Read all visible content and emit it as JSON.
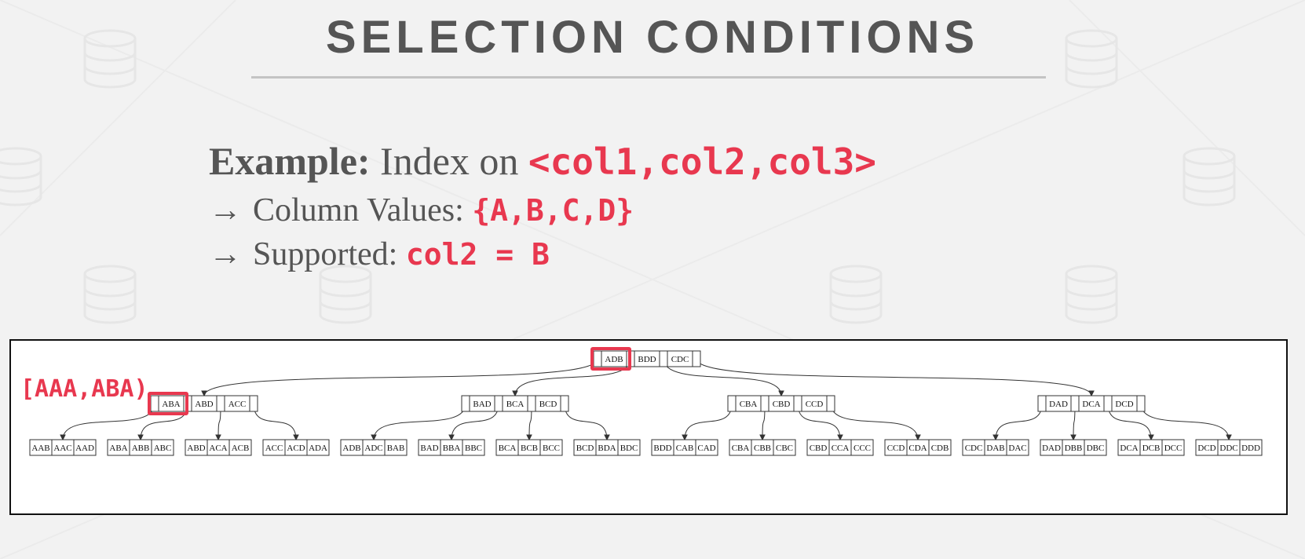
{
  "slide": {
    "title": "SELECTION CONDITIONS",
    "example_label": "Example:",
    "example_text": "Index on",
    "example_code": "<col1,col2,col3>",
    "line2_arrow": "→",
    "line2_text": "Column Values:",
    "line2_code": "{A,B,C,D}",
    "line3_arrow": "→",
    "line3_text": "Supported:",
    "line3_code": "col2 = B"
  },
  "diagram": {
    "range_label": "[AAA,ABA)",
    "root_keys": [
      "ADB",
      "BDD",
      "CDC"
    ],
    "inner_nodes": [
      [
        "ABA",
        "ABD",
        "ACC"
      ],
      [
        "BAD",
        "BCA",
        "BCD"
      ],
      [
        "CBA",
        "CBD",
        "CCD"
      ],
      [
        "DAD",
        "DCA",
        "DCD"
      ]
    ],
    "leaves": [
      [
        "AAB",
        "AAC",
        "AAD"
      ],
      [
        "ABA",
        "ABB",
        "ABC"
      ],
      [
        "ABD",
        "ACA",
        "ACB"
      ],
      [
        "ACC",
        "ACD",
        "ADA"
      ],
      [
        "ADB",
        "ADC",
        "BAB"
      ],
      [
        "BAD",
        "BBA",
        "BBC"
      ],
      [
        "BCA",
        "BCB",
        "BCC"
      ],
      [
        "BCD",
        "BDA",
        "BDC"
      ],
      [
        "BDD",
        "CAB",
        "CAD"
      ],
      [
        "CBA",
        "CBB",
        "CBC"
      ],
      [
        "CBD",
        "CCA",
        "CCC"
      ],
      [
        "CCD",
        "CDA",
        "CDB"
      ],
      [
        "CDC",
        "DAB",
        "DAC"
      ],
      [
        "DAD",
        "DBB",
        "DBC"
      ],
      [
        "DCA",
        "DCB",
        "DCC"
      ],
      [
        "DCD",
        "DDC",
        "DDD"
      ]
    ],
    "highlight_color": "#e8384f"
  }
}
